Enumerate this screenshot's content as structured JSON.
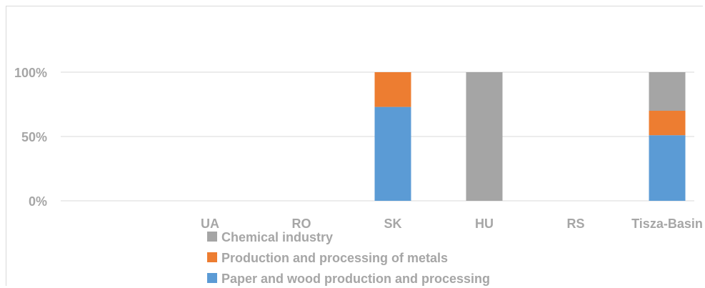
{
  "chart_data": {
    "type": "bar",
    "stacked": true,
    "categories": [
      "UA",
      "RO",
      "SK",
      "HU",
      "RS",
      "Tisza-Basin"
    ],
    "series": [
      {
        "name": "Paper and wood production and processing",
        "color": "#5b9bd5",
        "values": [
          0,
          0,
          73,
          0,
          0,
          51
        ]
      },
      {
        "name": "Production and processing of metals",
        "color": "#ed7d31",
        "values": [
          0,
          0,
          27,
          0,
          0,
          19
        ]
      },
      {
        "name": "Chemical industry",
        "color": "#a5a5a5",
        "values": [
          0,
          0,
          0,
          100,
          0,
          30
        ]
      }
    ],
    "y_ticks": [
      "0%",
      "50%",
      "100%"
    ],
    "y_tick_values": [
      0,
      50,
      100
    ],
    "ylim": [
      0,
      150
    ],
    "grid": true,
    "legend_position": "bottom",
    "legend_order": [
      2,
      1,
      0
    ]
  }
}
